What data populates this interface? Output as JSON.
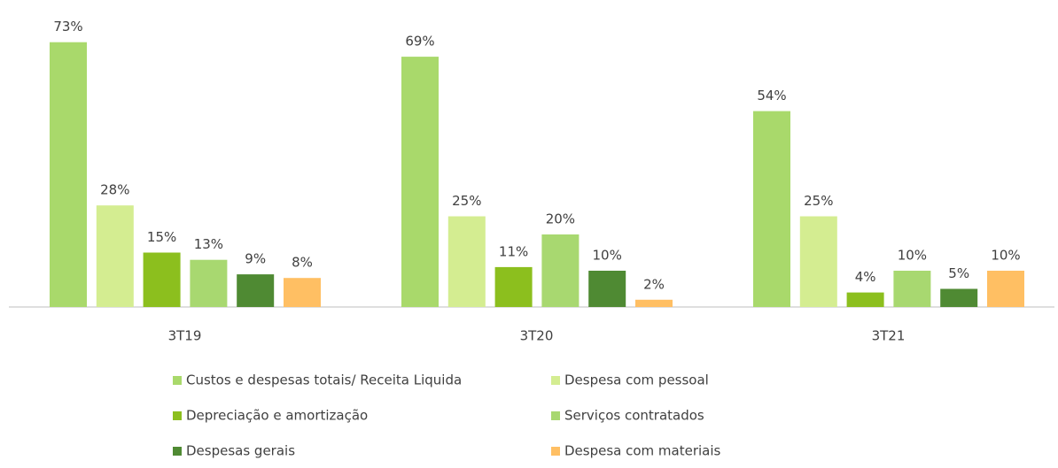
{
  "chart_data": {
    "type": "bar",
    "categories": [
      "3T19",
      "3T20",
      "3T21"
    ],
    "series": [
      {
        "name": "Custos e despesas totais/ Receita Liquida",
        "color": "#a9d96b",
        "values": [
          73,
          69,
          54
        ],
        "value_labels": [
          "73%",
          "69%",
          "54%"
        ]
      },
      {
        "name": "Despesa com pessoal",
        "color": "#d4ed91",
        "values": [
          28,
          25,
          25
        ],
        "value_labels": [
          "28%",
          "25%",
          "25%"
        ]
      },
      {
        "name": "Depreciação e amortização",
        "color": "#8cbf1e",
        "values": [
          15,
          11,
          4
        ],
        "value_labels": [
          "15%",
          "11%",
          "4%"
        ]
      },
      {
        "name": "Serviços contratados",
        "color": "#a8d870",
        "values": [
          13,
          20,
          10
        ],
        "value_labels": [
          "13%",
          "20%",
          "10%"
        ]
      },
      {
        "name": "Despesas gerais",
        "color": "#4f8a33",
        "values": [
          9,
          10,
          5
        ],
        "value_labels": [
          "9%",
          "10%",
          "5%"
        ]
      },
      {
        "name": "Despesa com materiais",
        "color": "#ffbf63",
        "values": [
          8,
          2,
          10
        ],
        "value_labels": [
          "8%",
          "2%",
          "10%"
        ]
      }
    ]
  }
}
